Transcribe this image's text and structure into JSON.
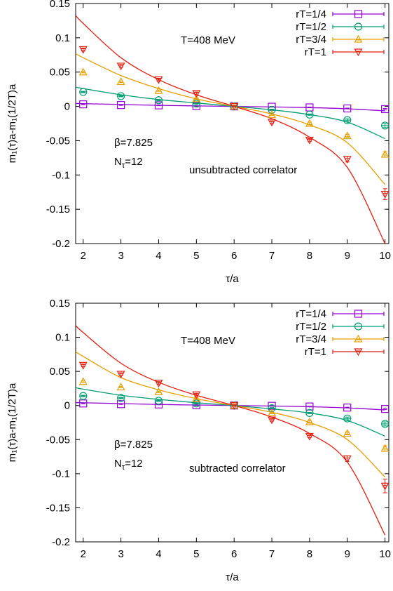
{
  "chart_data": [
    {
      "type": "scatter",
      "panel": "top",
      "xlabel": "τ/a",
      "ylabel": "m₁(τ)a-m₁(1/2T)a",
      "xlim": [
        1.8,
        10.1
      ],
      "ylim": [
        -0.2,
        0.15
      ],
      "xticks": [
        "2",
        "3",
        "4",
        "5",
        "6",
        "7",
        "8",
        "9",
        "10"
      ],
      "yticks": [
        "0.15",
        "0.1",
        "0.05",
        "0",
        "-0.05",
        "-0.1",
        "-0.15",
        "-0.2"
      ],
      "grid": false,
      "legend_position": "top-right",
      "annotations": {
        "temperature": "T=408 MeV",
        "beta": "β=7.825",
        "ntau": "Nτ=12",
        "ntau_main": "N",
        "ntau_sub": "τ",
        "ntau_rest": "=12",
        "note": "unsubtracted correlator"
      },
      "x": [
        2,
        3,
        4,
        5,
        6,
        7,
        8,
        9,
        10
      ],
      "series": [
        {
          "name": "rT=1/4",
          "color": "#9400d3",
          "marker": "square",
          "values": [
            0.003,
            0.002,
            0.0015,
            0.0005,
            0.0,
            -0.0005,
            -0.0015,
            -0.003,
            -0.004
          ],
          "errors": [
            0.0005,
            0.0005,
            0.0005,
            0.0005,
            0.0005,
            0.0005,
            0.0005,
            0.0005,
            0.001
          ],
          "fit": [
            0.004,
            0.0028,
            0.0015,
            0.0007,
            0.0,
            -0.0008,
            -0.0018,
            -0.0035,
            -0.0065
          ]
        },
        {
          "name": "rT=1/2",
          "color": "#009e73",
          "marker": "circle",
          "values": [
            0.021,
            0.015,
            0.009,
            0.004,
            0.0,
            -0.005,
            -0.012,
            -0.02,
            -0.028
          ],
          "errors": [
            0.001,
            0.001,
            0.001,
            0.001,
            0.001,
            0.001,
            0.001,
            0.002,
            0.003
          ],
          "fit": [
            0.026,
            0.017,
            0.01,
            0.005,
            0.0,
            -0.005,
            -0.012,
            -0.023,
            -0.047
          ]
        },
        {
          "name": "rT=3/4",
          "color": "#e69f00",
          "marker": "triangle-up",
          "values": [
            0.05,
            0.036,
            0.023,
            0.011,
            0.0,
            -0.012,
            -0.025,
            -0.043,
            -0.07
          ],
          "errors": [
            0.001,
            0.001,
            0.001,
            0.001,
            0.001,
            0.001,
            0.002,
            0.002,
            0.004
          ],
          "fit": [
            0.071,
            0.045,
            0.026,
            0.011,
            0.0,
            -0.011,
            -0.027,
            -0.053,
            -0.114
          ]
        },
        {
          "name": "rT=1",
          "color": "#e51e10",
          "marker": "triangle-down",
          "values": [
            0.083,
            0.059,
            0.039,
            0.019,
            0.0,
            -0.023,
            -0.049,
            -0.077,
            -0.128
          ],
          "errors": [
            0.002,
            0.002,
            0.002,
            0.002,
            0.001,
            0.002,
            0.002,
            0.004,
            0.008
          ],
          "fit": [
            0.121,
            0.071,
            0.039,
            0.017,
            0.0,
            -0.018,
            -0.045,
            -0.089,
            -0.2
          ]
        }
      ]
    },
    {
      "type": "scatter",
      "panel": "bottom",
      "xlabel": "τ/a",
      "ylabel": "m₁(τ)a-m₁(1/2T)a",
      "xlim": [
        1.8,
        10.1
      ],
      "ylim": [
        -0.2,
        0.15
      ],
      "xticks": [
        "2",
        "3",
        "4",
        "5",
        "6",
        "7",
        "8",
        "9",
        "10"
      ],
      "yticks": [
        "0.15",
        "0.1",
        "0.05",
        "0",
        "-0.05",
        "-0.1",
        "-0.15",
        "-0.2"
      ],
      "grid": false,
      "legend_position": "top-right",
      "annotations": {
        "temperature": "T=408 MeV",
        "beta": "β=7.825",
        "ntau": "Nτ=12",
        "ntau_main": "N",
        "ntau_sub": "τ",
        "ntau_rest": "=12",
        "note": "subtracted correlator"
      },
      "x": [
        2,
        3,
        4,
        5,
        6,
        7,
        8,
        9,
        10
      ],
      "series": [
        {
          "name": "rT=1/4",
          "color": "#9400d3",
          "marker": "square",
          "values": [
            0.003,
            0.002,
            0.0015,
            0.0005,
            0.0,
            -0.0005,
            -0.0015,
            -0.003,
            -0.005
          ],
          "errors": [
            0.0005,
            0.0005,
            0.0005,
            0.0005,
            0.0005,
            0.0005,
            0.0005,
            0.0005,
            0.001
          ],
          "fit": [
            0.004,
            0.0028,
            0.0015,
            0.0007,
            0.0,
            -0.0008,
            -0.0018,
            -0.0035,
            -0.0065
          ]
        },
        {
          "name": "rT=1/2",
          "color": "#009e73",
          "marker": "circle",
          "values": [
            0.014,
            0.011,
            0.007,
            0.003,
            0.0,
            -0.004,
            -0.011,
            -0.019,
            -0.027
          ],
          "errors": [
            0.001,
            0.001,
            0.001,
            0.001,
            0.001,
            0.001,
            0.001,
            0.002,
            0.003
          ],
          "fit": [
            0.024,
            0.015,
            0.009,
            0.004,
            0.0,
            -0.005,
            -0.011,
            -0.022,
            -0.045
          ]
        },
        {
          "name": "rT=3/4",
          "color": "#e69f00",
          "marker": "triangle-up",
          "values": [
            0.035,
            0.027,
            0.02,
            0.01,
            0.0,
            -0.011,
            -0.024,
            -0.041,
            -0.063
          ],
          "errors": [
            0.001,
            0.001,
            0.001,
            0.001,
            0.001,
            0.001,
            0.002,
            0.002,
            0.004
          ],
          "fit": [
            0.072,
            0.041,
            0.023,
            0.01,
            0.0,
            -0.01,
            -0.025,
            -0.05,
            -0.105
          ]
        },
        {
          "name": "rT=1",
          "color": "#e51e10",
          "marker": "triangle-down",
          "values": [
            0.059,
            0.046,
            0.033,
            0.016,
            0.0,
            -0.021,
            -0.045,
            -0.078,
            -0.118
          ],
          "errors": [
            0.002,
            0.002,
            0.002,
            0.002,
            0.001,
            0.002,
            0.002,
            0.004,
            0.01
          ],
          "fit": [
            0.107,
            0.062,
            0.034,
            0.015,
            0.0,
            -0.017,
            -0.041,
            -0.083,
            -0.19
          ]
        }
      ]
    }
  ]
}
